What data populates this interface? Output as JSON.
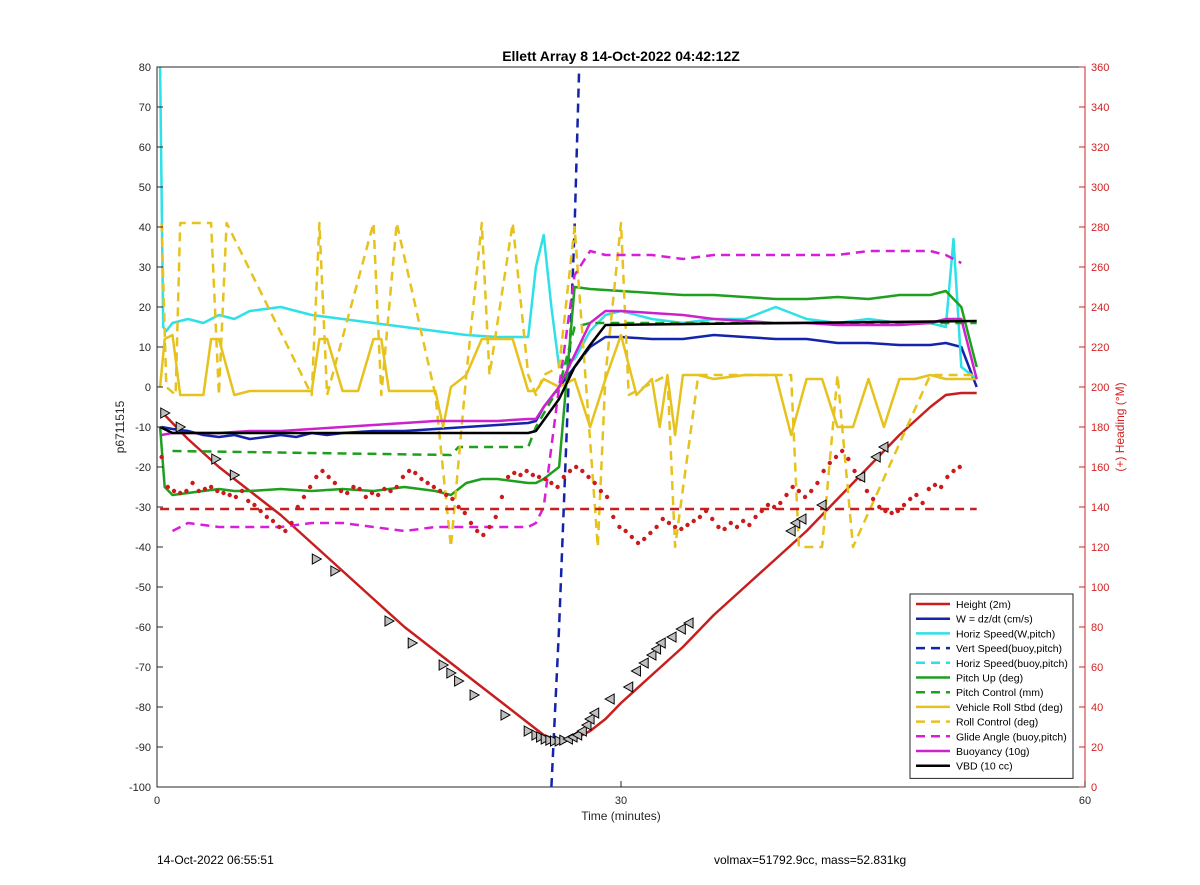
{
  "chart_data": {
    "type": "line",
    "title": "Ellett Array 8 14-Oct-2022 04:42:12Z",
    "xlabel": "Time (minutes)",
    "ylabel": "p6711515",
    "y2label": "(+) Heading (°M)",
    "xlim": [
      0,
      60
    ],
    "ylim": [
      -100,
      80
    ],
    "y2lim": [
      0,
      360
    ],
    "xticks": [
      0,
      30,
      60
    ],
    "yticks": [
      -100,
      -90,
      -80,
      -70,
      -60,
      -50,
      -40,
      -30,
      -20,
      -10,
      0,
      10,
      20,
      30,
      40,
      50,
      60,
      70,
      80
    ],
    "y2ticks": [
      0,
      20,
      40,
      60,
      80,
      100,
      120,
      140,
      160,
      180,
      200,
      220,
      240,
      260,
      280,
      300,
      320,
      340,
      360
    ],
    "grid": "vertical-minor",
    "legend_position": "bottom-right",
    "series": [
      {
        "name": "Height (2m)",
        "color": "#c81e1e",
        "style": "solid",
        "x": [
          0.5,
          2,
          4,
          6,
          8,
          10,
          12,
          14,
          16,
          18,
          20,
          22,
          24,
          25,
          26,
          27,
          28,
          29,
          30,
          32,
          34,
          36,
          38,
          40,
          42,
          44,
          46,
          48,
          50,
          51,
          52,
          53
        ],
        "y": [
          -7,
          -13,
          -20,
          -26,
          -32,
          -39,
          -46,
          -53,
          -60,
          -66,
          -72,
          -78,
          -84,
          -87,
          -88.5,
          -88,
          -86,
          -83,
          -79,
          -72,
          -65,
          -57,
          -50,
          -43,
          -36,
          -28,
          -20,
          -12,
          -5,
          -2,
          -1.5,
          -1.5
        ]
      },
      {
        "name": "W = dz/dt (cm/s)",
        "color": "#1424aa",
        "style": "solid",
        "x": [
          0.3,
          1,
          2,
          3,
          4,
          5,
          6,
          7,
          8,
          9,
          10,
          11,
          12,
          14,
          16,
          18,
          20,
          22,
          24,
          24.5,
          25,
          26,
          27,
          28,
          29,
          30,
          32,
          34,
          36,
          38,
          40,
          42,
          44,
          46,
          48,
          50,
          51,
          52,
          53
        ],
        "y": [
          -10,
          -10.5,
          -11,
          -12,
          -12.5,
          -12,
          -13,
          -12.5,
          -12,
          -12.5,
          -11.5,
          -12,
          -11.5,
          -11,
          -11,
          -10.5,
          -10,
          -9.5,
          -9,
          -8.5,
          -5,
          0,
          5,
          10,
          12.5,
          12.5,
          12,
          12,
          13,
          12.5,
          12,
          12,
          11,
          11,
          10.5,
          10.5,
          11,
          10,
          0
        ]
      },
      {
        "name": "Horiz Speed(W,pitch)",
        "color": "#2ee0e8",
        "style": "solid",
        "x": [
          0.2,
          0.4,
          0.6,
          1,
          2,
          3,
          4,
          5,
          6,
          7,
          8,
          10,
          12,
          14,
          16,
          18,
          20,
          22,
          24,
          24.5,
          25,
          25.5,
          26,
          27,
          28,
          29,
          30,
          32,
          34,
          36,
          38,
          40,
          42,
          44,
          46,
          48,
          50,
          51,
          51.5,
          52,
          53
        ],
        "y": [
          80,
          15,
          14,
          16,
          17,
          16,
          18,
          17,
          19,
          19.5,
          20,
          18,
          17,
          16,
          15,
          14,
          13,
          12.5,
          12.5,
          30,
          38,
          20,
          5,
          7,
          14,
          18,
          19,
          17,
          16,
          17,
          17,
          20,
          17,
          16,
          17,
          16,
          16,
          15,
          37,
          5,
          2
        ]
      },
      {
        "name": "Vert Speed(buoy,pitch)",
        "color": "#1424aa",
        "style": "dash",
        "x": [
          25.5,
          26,
          26.5,
          27,
          27.3
        ],
        "y": [
          -100,
          -60,
          -10,
          40,
          80
        ]
      },
      {
        "name": "Horiz Speed(buoy,pitch)",
        "color": "#2ee0e8",
        "style": "dash",
        "x": [],
        "y": []
      },
      {
        "name": "Pitch Up (deg)",
        "color": "#1ea01e",
        "style": "solid",
        "x": [
          0.2,
          0.5,
          1,
          2,
          3,
          4,
          5,
          6,
          8,
          10,
          12,
          14,
          16,
          18,
          19,
          20,
          21,
          22,
          24,
          24.5,
          25,
          26,
          27,
          28,
          30,
          32,
          34,
          36,
          38,
          40,
          42,
          44,
          46,
          48,
          50,
          51,
          52,
          53
        ],
        "y": [
          -10,
          -25,
          -27,
          -26.5,
          -26,
          -25.5,
          -26,
          -26,
          -25.5,
          -26,
          -25.5,
          -26,
          -25,
          -26,
          -27,
          -24,
          -23,
          -23,
          -24,
          -24,
          -23,
          -20,
          25,
          24.5,
          24,
          23.5,
          23,
          23,
          22.5,
          22,
          22,
          22.5,
          22,
          23,
          23,
          24,
          20,
          5
        ]
      },
      {
        "name": "Pitch Control (mm)",
        "color": "#1ea01e",
        "style": "dash",
        "x": [
          1,
          19,
          19.5,
          24,
          24.5,
          26,
          27,
          28,
          53
        ],
        "y": [
          -16,
          -17,
          -15,
          -15,
          -10,
          0,
          15,
          16,
          16
        ]
      },
      {
        "name": "Vehicle Roll Stbd (deg)",
        "color": "#e6c21e",
        "style": "solid",
        "x": [
          0.2,
          0.5,
          1,
          1.5,
          2,
          3,
          3.5,
          4,
          5,
          6,
          7,
          8,
          9,
          10,
          10.5,
          11,
          12,
          13,
          14,
          14.5,
          15,
          16,
          17,
          18,
          18.5,
          19,
          20,
          21,
          22,
          23,
          24,
          24.5,
          25,
          26,
          27,
          28,
          29,
          30,
          31,
          32,
          32.5,
          33,
          33.5,
          34,
          35,
          36,
          38,
          40,
          41,
          42,
          43,
          44,
          45,
          46,
          47,
          48,
          49,
          50,
          51,
          52,
          53
        ],
        "y": [
          0,
          12,
          13,
          -2,
          -2,
          -2,
          12,
          12,
          -2,
          -1,
          -1,
          -1,
          -1,
          -1,
          12,
          12,
          -1,
          -1,
          12,
          12,
          -1,
          -1,
          -1,
          -1,
          -10,
          0,
          3,
          12,
          12,
          12,
          -1,
          -1,
          2,
          0,
          2,
          -10,
          2,
          13,
          -2,
          2,
          -10,
          3,
          -12,
          3,
          3,
          2,
          3,
          3,
          -12,
          2,
          2,
          -10,
          -10,
          2,
          -10,
          2,
          2,
          3,
          2,
          2,
          2
        ]
      },
      {
        "name": "Roll Control (deg)",
        "color": "#e6c21e",
        "style": "dash",
        "x": [
          0.3,
          0.6,
          1.2,
          1.5,
          3.5,
          4,
          4.5,
          10,
          10.5,
          11,
          14,
          14.5,
          15.5,
          18,
          19,
          20,
          21,
          21.5,
          23,
          24,
          24.5,
          25,
          26,
          27,
          28.5,
          29,
          30,
          30.5,
          33,
          33.5,
          35,
          41,
          41.5,
          43,
          44,
          45,
          50,
          53
        ],
        "y": [
          41,
          0,
          -2,
          41,
          41,
          -2,
          41,
          -2,
          41,
          -2,
          41,
          -2,
          41,
          -2,
          -40,
          3,
          41,
          3,
          41,
          3,
          -2,
          3,
          5,
          40,
          -40,
          3,
          41,
          -2,
          3,
          -40,
          3,
          3,
          -40,
          -40,
          3,
          -40,
          3,
          3
        ]
      },
      {
        "name": "Glide Angle (buoy,pitch)",
        "color": "#d81ed8",
        "style": "dash",
        "x": [
          1,
          2,
          4,
          6,
          8,
          10,
          12,
          14,
          16,
          18,
          20,
          22,
          24,
          24.5,
          25,
          26,
          27,
          28,
          29,
          30,
          32,
          34,
          36,
          38,
          40,
          42,
          44,
          46,
          48,
          50,
          51,
          52
        ],
        "y": [
          -36,
          -34,
          -35,
          -35,
          -35,
          -34,
          -34,
          -35,
          -36,
          -35,
          -35,
          -35,
          -35,
          -34,
          -30,
          0,
          28,
          34,
          33,
          33,
          33,
          32,
          33,
          33,
          33,
          33,
          33,
          34,
          34,
          34,
          33,
          31
        ]
      },
      {
        "name": "Buoyancy (10g)",
        "color": "#cc22cc",
        "style": "solid",
        "x": [
          0.3,
          1,
          2,
          4,
          6,
          8,
          10,
          12,
          14,
          16,
          18,
          20,
          22,
          24,
          24.5,
          25,
          26,
          27,
          28,
          29,
          30,
          32,
          34,
          36,
          38,
          40,
          42,
          44,
          46,
          48,
          50,
          51,
          52,
          53
        ],
        "y": [
          -12,
          -11.5,
          -11.5,
          -11.5,
          -11,
          -11,
          -10.5,
          -10,
          -9.5,
          -9,
          -8.5,
          -8.5,
          -8.5,
          -8,
          -8,
          -5,
          0,
          8,
          16,
          19,
          19,
          18.5,
          18,
          17,
          16.5,
          16,
          16,
          15.5,
          15.5,
          15.5,
          16,
          17,
          17,
          2
        ]
      },
      {
        "name": "VBD (10 cc)",
        "color": "#000000",
        "style": "solid",
        "x": [
          0.2,
          1,
          24,
          24.5,
          26,
          27,
          28,
          29,
          53
        ],
        "y": [
          -10,
          -11.5,
          -11.5,
          -11,
          -3,
          5,
          10.5,
          15.5,
          16.5
        ]
      },
      {
        "name": "",
        "color": "#c81e1e",
        "style": "dash",
        "x": [
          0.2,
          53
        ],
        "y": [
          -30.5,
          -30.5
        ]
      }
    ],
    "heading_points": {
      "name": "",
      "color": "#cc1a1a",
      "axis": "right",
      "x": [
        0.3,
        0.7,
        1.1,
        1.5,
        1.9,
        2.3,
        2.7,
        3.1,
        3.5,
        3.9,
        4.3,
        4.7,
        5.1,
        5.5,
        5.9,
        6.3,
        6.7,
        7.1,
        7.5,
        7.9,
        8.3,
        8.7,
        9.1,
        9.5,
        9.9,
        10.3,
        10.7,
        11.1,
        11.5,
        11.9,
        12.3,
        12.7,
        13.1,
        13.5,
        13.9,
        14.3,
        14.7,
        15.1,
        15.5,
        15.9,
        16.3,
        16.7,
        17.1,
        17.5,
        17.9,
        18.3,
        18.7,
        19.1,
        19.5,
        19.9,
        20.3,
        20.7,
        21.1,
        21.5,
        21.9,
        22.3,
        22.7,
        23.1,
        23.5,
        23.9,
        24.3,
        24.7,
        25.1,
        25.5,
        25.9,
        26.3,
        26.7,
        27.1,
        27.5,
        27.9,
        28.3,
        28.7,
        29.1,
        29.5,
        29.9,
        30.3,
        30.7,
        31.1,
        31.5,
        31.9,
        32.3,
        32.7,
        33.1,
        33.5,
        33.9,
        34.3,
        34.7,
        35.1,
        35.5,
        35.9,
        36.3,
        36.7,
        37.1,
        37.5,
        37.9,
        38.3,
        38.7,
        39.1,
        39.5,
        39.9,
        40.3,
        40.7,
        41.1,
        41.5,
        41.9,
        42.3,
        42.7,
        43.1,
        43.5,
        43.9,
        44.3,
        44.7,
        45.1,
        45.5,
        45.9,
        46.3,
        46.7,
        47.1,
        47.5,
        47.9,
        48.3,
        48.7,
        49.1,
        49.5,
        49.9,
        50.3,
        50.7,
        51.1,
        51.5,
        51.9
      ],
      "y": [
        165,
        150,
        148,
        147,
        148,
        152,
        148,
        149,
        150,
        148,
        147,
        146,
        145,
        148,
        143,
        141,
        138,
        135,
        133,
        130,
        128,
        132,
        140,
        145,
        150,
        155,
        158,
        155,
        152,
        148,
        147,
        150,
        149,
        145,
        147,
        146,
        149,
        148,
        150,
        155,
        158,
        157,
        154,
        152,
        150,
        148,
        146,
        144,
        140,
        137,
        132,
        128,
        126,
        130,
        135,
        145,
        155,
        157,
        156,
        158,
        156,
        155,
        154,
        152,
        150,
        155,
        158,
        160,
        158,
        155,
        152,
        148,
        145,
        135,
        130,
        128,
        125,
        122,
        124,
        127,
        130,
        134,
        132,
        130,
        129,
        131,
        133,
        135,
        138,
        134,
        130,
        129,
        132,
        130,
        133,
        131,
        135,
        138,
        141,
        140,
        142,
        146,
        150,
        148,
        145,
        148,
        152,
        158,
        162,
        165,
        168,
        164,
        158,
        154,
        148,
        144,
        140,
        138,
        137,
        138,
        141,
        144,
        146,
        142,
        149,
        151,
        150,
        155,
        158,
        160
      ]
    },
    "markers": {
      "x": [
        0.5,
        1.5,
        3.8,
        5,
        10.3,
        11.5,
        15,
        16.5,
        18.5,
        19,
        19.5,
        20.5,
        22.5,
        24,
        24.5,
        24.8,
        25.1,
        25.4,
        25.7,
        26,
        26.3,
        26.6,
        26.9,
        27.2,
        27.5,
        27.8,
        28,
        28.3,
        29.3,
        30.5,
        31,
        31.5,
        32,
        32.3,
        32.6,
        33.3,
        33.9,
        34.4,
        41,
        41.3,
        41.7,
        43,
        45.5,
        46.5,
        47
      ],
      "y": [
        -6.5,
        -10,
        -18,
        -22,
        -43,
        -46,
        -58.5,
        -64,
        -69.5,
        -71.5,
        -73.5,
        -77,
        -82,
        -86,
        -87,
        -87.5,
        -88,
        -88.3,
        -88.5,
        -88.5,
        -88.3,
        -88,
        -87.5,
        -87,
        -86,
        -84.5,
        -83,
        -81.5,
        -78,
        -75,
        -71,
        -69,
        -67,
        -65.5,
        -64,
        -62.5,
        -60.5,
        -59,
        -36,
        -34,
        -33,
        -29.5,
        -22.5,
        -17.5,
        -15
      ]
    }
  }
}
